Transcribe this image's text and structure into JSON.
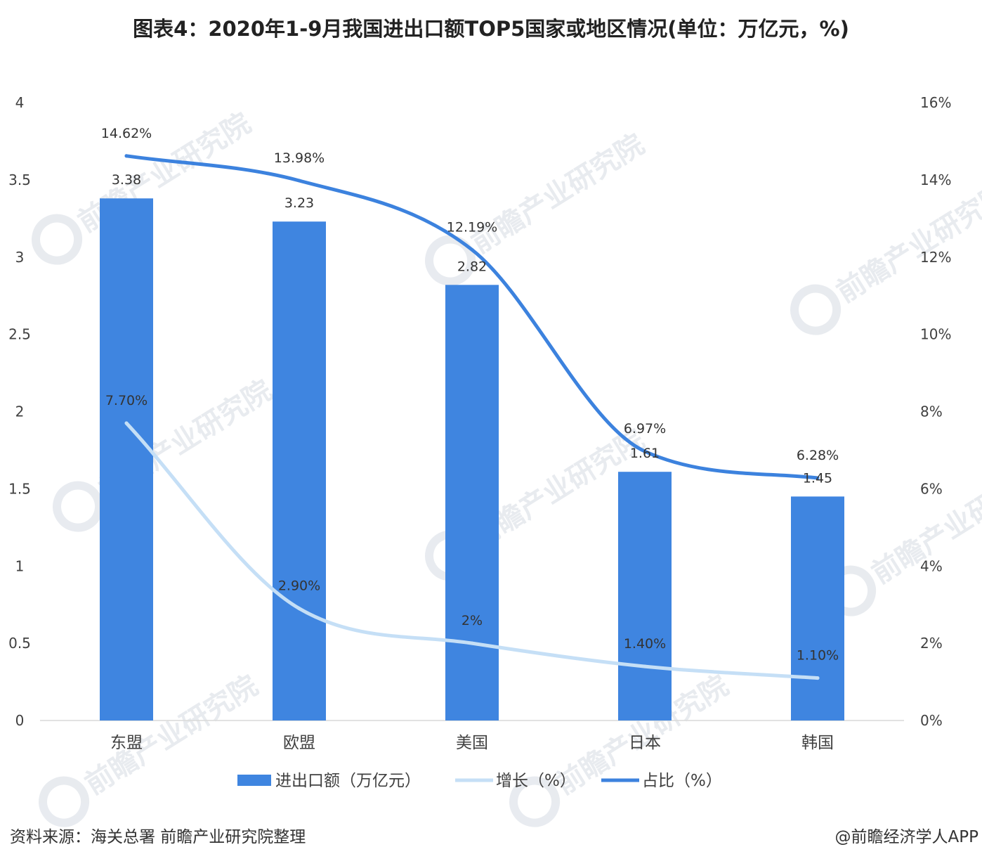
{
  "chart_data": {
    "type": "bar",
    "title": "图表4：2020年1-9月我国进出口额TOP5国家或地区情况(单位：万亿元，%)",
    "categories": [
      "东盟",
      "欧盟",
      "美国",
      "日本",
      "韩国"
    ],
    "series": [
      {
        "name": "进出口额（万亿元）",
        "type": "bar",
        "axis": "left",
        "color": "#3f85e0",
        "values": [
          3.38,
          3.23,
          2.82,
          1.61,
          1.45
        ],
        "labels": [
          "3.38",
          "3.23",
          "2.82",
          "1.61",
          "1.45"
        ]
      },
      {
        "name": "增长（%）",
        "type": "line",
        "axis": "right",
        "color": "#c5dff6",
        "values": [
          7.7,
          2.9,
          2.0,
          1.4,
          1.1
        ],
        "labels": [
          "7.70%",
          "2.90%",
          "2%",
          "1.40%",
          "1.10%"
        ]
      },
      {
        "name": "占比（%）",
        "type": "line",
        "axis": "right",
        "color": "#3c82de",
        "values": [
          14.62,
          13.98,
          12.19,
          6.97,
          6.28
        ],
        "labels": [
          "14.62%",
          "13.98%",
          "12.19%",
          "6.97%",
          "6.28%"
        ]
      }
    ],
    "y_left": {
      "ylim": [
        0,
        4
      ],
      "ticks": [
        0,
        0.5,
        1,
        1.5,
        2,
        2.5,
        3,
        3.5,
        4
      ],
      "tick_labels": [
        "0",
        "0.5",
        "1",
        "1.5",
        "2",
        "2.5",
        "3",
        "3.5",
        "4"
      ]
    },
    "y_right": {
      "ylim": [
        0,
        16
      ],
      "ticks": [
        0,
        2,
        4,
        6,
        8,
        10,
        12,
        14,
        16
      ],
      "tick_labels": [
        "0%",
        "2%",
        "4%",
        "6%",
        "8%",
        "10%",
        "12%",
        "14%",
        "16%"
      ]
    },
    "grid": false,
    "legend": "bottom"
  },
  "watermark": {
    "text": "前瞻产业研究院"
  },
  "footer": {
    "source": "资料来源：海关总署   前瞻产业研究院整理",
    "credit": "@前瞻经济学人APP"
  }
}
